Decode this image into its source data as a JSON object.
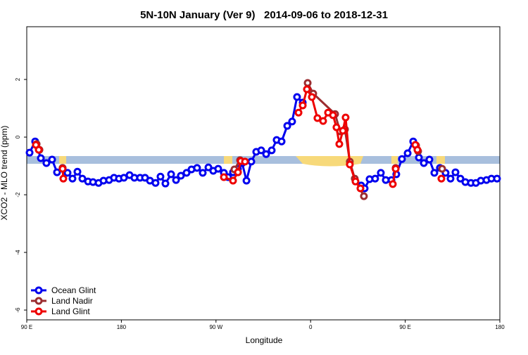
{
  "chart_data": {
    "type": "line",
    "title": "5N-10N January (Ver 9)   2014-09-06 to 2018-12-31",
    "x_label": "Longitude",
    "y_label": "XCO2 - MLO trend (ppm)",
    "xlim": [
      90,
      540
    ],
    "ylim": [
      -6.34,
      3.83
    ],
    "xticks": [
      {
        "value": 90,
        "label": "90 E"
      },
      180,
      {
        "value": 270,
        "label": "90 W"
      },
      {
        "value": 360,
        "label": "0"
      },
      {
        "value": 450,
        "label": "90 E"
      },
      {
        "value": 540,
        "label": "180"
      }
    ],
    "yticks": [
      -6,
      -4,
      -2,
      0,
      2
    ],
    "legend": "bottom-left",
    "series": [
      {
        "name": "Ocean Glint",
        "color": "#0000ee",
        "x": [
          92.7,
          98.0,
          103.4,
          108.7,
          114.1,
          118.8,
          124.1,
          128.8,
          133.5,
          138.2,
          142.9,
          148.3,
          153.0,
          158.3,
          163.0,
          168.3,
          173.0,
          177.7,
          182.4,
          187.8,
          192.4,
          197.8,
          202.5,
          207.2,
          212.5,
          217.2,
          221.9,
          227.3,
          232.0,
          236.6,
          242.0,
          246.7,
          252.0,
          257.4,
          262.8,
          267.4,
          272.1,
          277.5,
          281.5,
          286.2,
          290.9,
          294.9,
          299.0,
          303.6,
          308.3,
          313.0,
          317.7,
          323.0,
          327.7,
          332.4,
          337.8,
          342.4,
          347.1,
          352.5,
          null,
          408.1,
          411.4,
          416.1,
          421.4,
          426.8,
          431.5,
          436.9,
          441.5,
          446.9,
          452.3,
          457.6,
          463.0,
          467.7,
          473.0,
          477.7,
          483.0,
          488.4,
          493.1,
          497.8,
          502.5,
          507.2,
          512.5,
          517.2,
          521.9,
          527.3,
          532.0,
          537.3
        ],
        "values": [
          -0.54,
          -0.15,
          -0.73,
          -0.9,
          -0.78,
          -1.22,
          -1.07,
          -1.24,
          -1.44,
          -1.2,
          -1.44,
          -1.54,
          -1.56,
          -1.59,
          -1.51,
          -1.49,
          -1.41,
          -1.44,
          -1.41,
          -1.32,
          -1.41,
          -1.41,
          -1.41,
          -1.51,
          -1.59,
          -1.37,
          -1.61,
          -1.29,
          -1.49,
          -1.34,
          -1.24,
          -1.12,
          -1.07,
          -1.24,
          -1.05,
          -1.17,
          -1.1,
          -1.24,
          -1.39,
          -1.22,
          -1.1,
          -0.9,
          -1.51,
          -0.85,
          -0.51,
          -0.46,
          -0.59,
          -0.46,
          -0.1,
          -0.15,
          0.39,
          0.54,
          1.39,
          1.2,
          null,
          -1.68,
          -1.78,
          -1.46,
          -1.44,
          -1.24,
          -1.49,
          -1.49,
          -1.29,
          -0.76,
          -0.56,
          -0.15,
          -0.71,
          -0.9,
          -0.78,
          -1.24,
          -1.07,
          -1.24,
          -1.44,
          -1.22,
          -1.44,
          -1.56,
          -1.59,
          -1.59,
          -1.51,
          -1.49,
          -1.44,
          -1.44
        ]
      },
      {
        "name": "Land Nadir",
        "color": "#9b2d30",
        "x": [
          99.4,
          102.1,
          null,
          124.1,
          null,
          287.5,
          292.9,
          null,
          357.2,
          362.5,
          383.3,
          388.0,
          392.7,
          397.3,
          402.0,
          410.7,
          null,
          440.9,
          null,
          460.3,
          462.3,
          null,
          485.1
        ],
        "values": [
          -0.24,
          -0.44,
          null,
          -1.07,
          null,
          -1.12,
          -0.8,
          null,
          1.88,
          1.51,
          0.8,
          0.2,
          0.27,
          -0.85,
          -1.44,
          -2.05,
          null,
          -1.07,
          null,
          -0.29,
          -0.49,
          null,
          -1.1
        ]
      },
      {
        "name": "Land Glint",
        "color": "#ee0000",
        "x": [
          98.7,
          101.4,
          null,
          124.1,
          124.8,
          null,
          277.5,
          286.2,
          290.9,
          293.6,
          297.6,
          null,
          348.5,
          352.5,
          356.5,
          361.2,
          366.5,
          371.9,
          376.6,
          381.3,
          384.6,
          387.3,
          390.7,
          393.3,
          397.3,
          402.7,
          407.4,
          null,
          438.2,
          440.9,
          null,
          459.6,
          461.6,
          null,
          484.4
        ],
        "values": [
          -0.27,
          -0.44,
          null,
          -1.1,
          -1.44,
          null,
          -1.39,
          -1.51,
          -1.22,
          -0.83,
          -0.85,
          null,
          0.85,
          1.1,
          1.66,
          1.39,
          0.66,
          0.56,
          0.85,
          0.76,
          0.34,
          -0.24,
          0.22,
          0.68,
          -0.95,
          -1.54,
          -1.78,
          null,
          -1.63,
          -1.1,
          null,
          -0.27,
          -0.44,
          null,
          -1.44
        ]
      }
    ]
  }
}
